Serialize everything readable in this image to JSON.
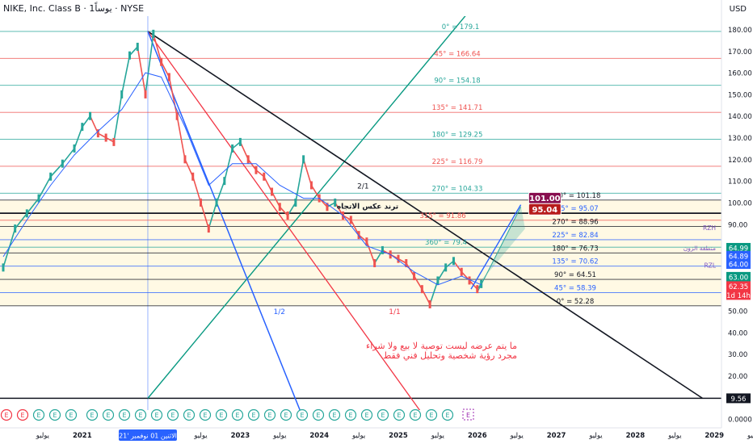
{
  "header": {
    "title": "NIKE, Inc. Class B · 1يوساً · NYSE",
    "currency": "USD"
  },
  "chart_data": {
    "type": "line",
    "ylim": [
      0,
      185
    ],
    "y_ticks": [
      {
        "v": 180,
        "t": "180.00"
      },
      {
        "v": 170,
        "t": "170.00"
      },
      {
        "v": 160,
        "t": "160.00"
      },
      {
        "v": 150,
        "t": "150.00"
      },
      {
        "v": 140,
        "t": "140.00"
      },
      {
        "v": 130,
        "t": "130.00"
      },
      {
        "v": 120,
        "t": "120.00"
      },
      {
        "v": 110,
        "t": "110.00"
      },
      {
        "v": 100,
        "t": "100.00"
      },
      {
        "v": 90,
        "t": "90.00"
      },
      {
        "v": 50,
        "t": "50.00"
      },
      {
        "v": 40,
        "t": "40.00"
      },
      {
        "v": 30,
        "t": "30.00"
      },
      {
        "v": 20,
        "t": "20.00"
      },
      {
        "v": 10,
        "t": "10.00"
      },
      {
        "v": 0,
        "t": "0.0000"
      }
    ],
    "x_ticks": [
      "يوليو",
      "2021",
      "يوليو",
      "2023",
      "يوليو",
      "2024",
      "يوليو",
      "2025",
      "يوليو",
      "2026",
      "يوليو",
      "2027",
      "يوليو",
      "2028",
      "يوليو",
      "2029",
      "يوليو"
    ],
    "x_ticks_numeric": [
      2020.5,
      2021.0,
      2022.5,
      2023.0,
      2023.5,
      2024.0,
      2024.5,
      2025.0,
      2025.5,
      2026.0,
      2026.5,
      2027.0,
      2027.5,
      2028.0,
      2028.5,
      2029.0,
      2029.5
    ],
    "crosshair_label": "الاثنين 01 نوفمبر '21",
    "crosshair_x": 2021.83,
    "price_series": {
      "name": "",
      "x": [
        2020.0,
        2020.15,
        2020.3,
        2020.45,
        2020.6,
        2020.75,
        2020.9,
        2021.0,
        2021.1,
        2021.2,
        2021.3,
        2021.4,
        2021.5,
        2021.6,
        2021.7,
        2021.8,
        2021.9,
        2022.0,
        2022.1,
        2022.2,
        2022.3,
        2022.4,
        2022.5,
        2022.6,
        2022.7,
        2022.8,
        2022.9,
        2023.0,
        2023.1,
        2023.2,
        2023.3,
        2023.4,
        2023.5,
        2023.6,
        2023.7,
        2023.8,
        2023.9,
        2024.0,
        2024.1,
        2024.2,
        2024.3,
        2024.4,
        2024.5,
        2024.6,
        2024.7,
        2024.8,
        2024.9,
        2025.0,
        2025.1,
        2025.2,
        2025.3,
        2025.4,
        2025.5,
        2025.6,
        2025.7,
        2025.8,
        2025.9,
        2026.0,
        2026.05
      ],
      "y": [
        70,
        88,
        95,
        102,
        112,
        118,
        125,
        135,
        140,
        132,
        130,
        128,
        150,
        168,
        172,
        150,
        178,
        165,
        158,
        140,
        120,
        112,
        100,
        88,
        100,
        110,
        125,
        128,
        120,
        115,
        112,
        105,
        98,
        94,
        100,
        120,
        108,
        102,
        98,
        100,
        94,
        92,
        85,
        82,
        72,
        78,
        76,
        74,
        72,
        66,
        60,
        53,
        64,
        70,
        73,
        68,
        64,
        60,
        62.35
      ]
    },
    "ma_series": {
      "name": "",
      "x": [
        2020.0,
        2020.3,
        2020.6,
        2020.9,
        2021.2,
        2021.5,
        2021.8,
        2022.0,
        2022.3,
        2022.6,
        2022.9,
        2023.2,
        2023.5,
        2023.8,
        2024.0,
        2024.3,
        2024.6,
        2024.9,
        2025.2,
        2025.5,
        2025.8,
        2026.05
      ],
      "y": [
        75,
        92,
        108,
        122,
        133,
        143,
        160,
        158,
        135,
        108,
        118,
        118,
        108,
        102,
        102,
        94,
        80,
        76,
        68,
        62,
        66,
        62
      ]
    },
    "levels": [
      {
        "y": 179.1,
        "label": "0° = 179.1",
        "color": "#26a69a",
        "text_color": "#26a69a"
      },
      {
        "y": 166.64,
        "label": "45° = 166.64",
        "color": "#ef5350",
        "text_color": "#ef5350"
      },
      {
        "y": 154.18,
        "label": "90° = 154.18",
        "color": "#26a69a",
        "text_color": "#26a69a"
      },
      {
        "y": 141.71,
        "label": "135° = 141.71",
        "color": "#ef5350",
        "text_color": "#ef5350"
      },
      {
        "y": 129.25,
        "label": "180° = 129.25",
        "color": "#26a69a",
        "text_color": "#26a69a"
      },
      {
        "y": 116.79,
        "label": "225° = 116.79",
        "color": "#ef5350",
        "text_color": "#ef5350"
      },
      {
        "y": 104.33,
        "label": "270° = 104.33",
        "color": "#26a69a",
        "text_color": "#26a69a"
      },
      {
        "y": 101.18,
        "label": "360° = 101.18",
        "color": "#131722",
        "text_color": "#131722"
      },
      {
        "y": 95.07,
        "label": "315° = 95.07",
        "color": "#2962ff",
        "text_color": "#2962ff"
      },
      {
        "y": 91.86,
        "label": "315° = 91.86",
        "color": "#ef5350",
        "text_color": "#ef5350"
      },
      {
        "y": 88.96,
        "label": "270° = 88.96",
        "color": "#131722",
        "text_color": "#131722"
      },
      {
        "y": 82.84,
        "label": "225° = 82.84",
        "color": "#2962ff",
        "text_color": "#2962ff"
      },
      {
        "y": 79.4,
        "label": "360° = 79.4",
        "color": "#26a69a",
        "text_color": "#26a69a"
      },
      {
        "y": 76.73,
        "label": "180° = 76.73",
        "color": "#131722",
        "text_color": "#131722"
      },
      {
        "y": 70.62,
        "label": "135° = 70.62",
        "color": "#2962ff",
        "text_color": "#2962ff"
      },
      {
        "y": 64.51,
        "label": "90° = 64.51",
        "color": "#131722",
        "text_color": "#131722"
      },
      {
        "y": 58.39,
        "label": "45° = 58.39",
        "color": "#2962ff",
        "text_color": "#2962ff"
      },
      {
        "y": 52.28,
        "label": "0° = 52.28",
        "color": "#131722",
        "text_color": "#131722"
      }
    ],
    "horizontal_lines": [
      {
        "y": 9.56,
        "color": "#131722",
        "label": "9.56",
        "label_bg": "#131722",
        "label_color": "#ffffff"
      }
    ],
    "price_badges": [
      {
        "y": 79.1,
        "label": "64.99",
        "bg": "#089981",
        "color": "#ffffff"
      },
      {
        "y": 75.4,
        "label": "64.89",
        "bg": "#2962ff",
        "color": "#ffffff"
      },
      {
        "y": 71.6,
        "label": "64.00",
        "bg": "#2962ff",
        "color": "#ffffff"
      },
      {
        "y": 65.7,
        "label": "63.00",
        "bg": "#089981",
        "color": "#ffffff"
      },
      {
        "y": 61.4,
        "label": "62.35",
        "bg": "#f23645",
        "color": "#ffffff"
      },
      {
        "y": 57.3,
        "label": "1d 14h",
        "bg": "#f23645",
        "color": "#ffffff"
      }
    ],
    "side_tags": [
      {
        "y": 88.5,
        "label": "RZH",
        "color": "#7e57c2"
      },
      {
        "y": 79.0,
        "label": "منطقة الزون",
        "color": "#7e57c2"
      },
      {
        "y": 71.0,
        "label": "RZL",
        "color": "#7e57c2"
      }
    ],
    "fan_lines": [
      {
        "label": "2/1",
        "color": "#131722"
      },
      {
        "label": "1/2",
        "color": "#2962ff"
      },
      {
        "label": "1/1",
        "color": "#f23645"
      }
    ],
    "target_boxes": [
      {
        "label": "101.00",
        "bg": "#880e4f"
      },
      {
        "label": "95.04",
        "bg": "#b71c1c"
      }
    ],
    "annotations": [
      {
        "text": "ترند عكس الاتجاه",
        "color": "#131722"
      },
      {
        "text": "ما يتم عرضه ليست توصية  لا بيع ولا شراء",
        "color": "#f23645"
      },
      {
        "text": "مجرد رؤية شخصية وتحليل فني  فقط",
        "color": "#f23645"
      }
    ],
    "event_icon_count": 28,
    "event_icon_label": "E",
    "colors": {
      "up": "#26a69a",
      "down": "#ef5350",
      "ma": "#2962ff",
      "zone_fill": "#fff8e1",
      "fan_green": "#089981",
      "fan_black": "#131722",
      "fan_red": "#f23645",
      "fan_blue": "#2962ff",
      "crosshair": "#2962ff"
    }
  }
}
